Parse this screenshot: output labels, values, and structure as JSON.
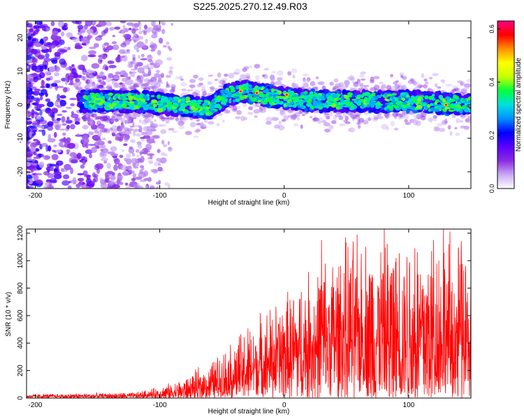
{
  "figure": {
    "title": "S225.2025.270.12.49.R03"
  },
  "chart_data": [
    {
      "type": "heatmap",
      "name": "spectrogram",
      "xlabel": "Height of straight line (km)",
      "ylabel": "Frequency (Hz)",
      "xlim": [
        -207,
        150
      ],
      "ylim": [
        -25,
        25
      ],
      "xticks": [
        -200,
        -100,
        0,
        100
      ],
      "yticks": [
        -20,
        -10,
        0,
        10,
        20
      ],
      "band": {
        "description": "signal band along frequency ~0 Hz",
        "x_start": -165,
        "x_end": 150,
        "center_points": [
          [
            -165,
            1
          ],
          [
            -120,
            1
          ],
          [
            -90,
            0
          ],
          [
            -60,
            -1
          ],
          [
            -45,
            3
          ],
          [
            -30,
            4
          ],
          [
            -20,
            3
          ],
          [
            0,
            2
          ],
          [
            30,
            1
          ],
          [
            60,
            1
          ],
          [
            100,
            1
          ],
          [
            150,
            0
          ]
        ],
        "half_width_hz": 3,
        "peak_positions": [
          [
            -22,
            3.5
          ],
          [
            2,
            3
          ],
          [
            130,
            0
          ],
          [
            -35,
            4
          ]
        ]
      },
      "colorbar": {
        "label": "Normalized spectral amplitude",
        "min": 0.0,
        "max": 0.63,
        "ticks": [
          0.0,
          0.2,
          0.4,
          0.6
        ],
        "tick_labels": [
          "0.0",
          "0.2",
          "0.4",
          "0.6"
        ],
        "colors": [
          "#ffffff",
          "#c9a8f5",
          "#8a2be2",
          "#5a00ff",
          "#0000ff",
          "#0090ff",
          "#00e0e0",
          "#00ff40",
          "#c8ff00",
          "#ffff00",
          "#ff9000",
          "#ff0000",
          "#ff0080"
        ]
      }
    },
    {
      "type": "line",
      "name": "snr",
      "xlabel": "Height of straight line (km)",
      "ylabel": "SNR (10 * v/v)",
      "xlim": [
        -207,
        150
      ],
      "ylim": [
        0,
        1230
      ],
      "xticks": [
        -200,
        -100,
        0,
        100
      ],
      "yticks": [
        0,
        200,
        400,
        600,
        800,
        1000,
        1200
      ],
      "color": "#ff0000",
      "envelope": [
        {
          "x": -207,
          "base": 12,
          "spread": 20
        },
        {
          "x": -120,
          "base": 15,
          "spread": 30
        },
        {
          "x": -100,
          "base": 30,
          "spread": 60
        },
        {
          "x": -80,
          "base": 50,
          "spread": 110
        },
        {
          "x": -60,
          "base": 90,
          "spread": 200
        },
        {
          "x": -40,
          "base": 160,
          "spread": 320
        },
        {
          "x": -20,
          "base": 230,
          "spread": 430
        },
        {
          "x": 0,
          "base": 300,
          "spread": 520
        },
        {
          "x": 20,
          "base": 360,
          "spread": 650
        },
        {
          "x": 40,
          "base": 420,
          "spread": 800
        },
        {
          "x": 80,
          "base": 440,
          "spread": 900
        },
        {
          "x": 120,
          "base": 430,
          "spread": 950
        },
        {
          "x": 150,
          "base": 380,
          "spread": 850
        }
      ],
      "spikes": [
        [
          30,
          1150
        ],
        [
          62,
          1050
        ],
        [
          128,
          1230
        ],
        [
          120,
          1150
        ],
        [
          90,
          1020
        ],
        [
          105,
          1090
        ],
        [
          142,
          980
        ]
      ]
    }
  ]
}
